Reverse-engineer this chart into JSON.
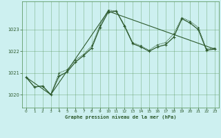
{
  "title": "Graphe pression niveau de la mer (hPa)",
  "background_color": "#cdf0f0",
  "grid_color": "#4a8a4a",
  "line_color": "#2d5a2d",
  "xlim": [
    -0.5,
    23.5
  ],
  "ylim": [
    1019.4,
    1024.3
  ],
  "yticks": [
    1020,
    1021,
    1022,
    1023
  ],
  "xticks": [
    0,
    1,
    2,
    3,
    4,
    5,
    6,
    7,
    8,
    9,
    10,
    11,
    12,
    13,
    14,
    15,
    16,
    17,
    18,
    19,
    20,
    21,
    22,
    23
  ],
  "line1_x": [
    0,
    1,
    2,
    3,
    4,
    5,
    6,
    7,
    8,
    9,
    10,
    11,
    12,
    13,
    14,
    15,
    16,
    17,
    18,
    19,
    20,
    21,
    22,
    23
  ],
  "line1_y": [
    1020.8,
    1020.35,
    1020.4,
    1020.0,
    1020.85,
    1021.05,
    1021.5,
    1021.8,
    1022.15,
    1023.1,
    1023.8,
    1023.85,
    1023.15,
    1022.35,
    1022.2,
    1022.0,
    1022.2,
    1022.3,
    1022.65,
    1023.5,
    1023.3,
    1023.0,
    1022.05,
    1022.1
  ],
  "line2_x": [
    0,
    1,
    2,
    3,
    4,
    5,
    6,
    7,
    8,
    9,
    10,
    11,
    12,
    13,
    14,
    15,
    16,
    17,
    18,
    19,
    20,
    21,
    22,
    23
  ],
  "line2_y": [
    1020.8,
    1020.35,
    1020.4,
    1020.0,
    1021.0,
    1021.15,
    1021.6,
    1021.85,
    1022.25,
    1023.2,
    1023.9,
    1023.85,
    1023.2,
    1022.4,
    1022.25,
    1022.05,
    1022.3,
    1022.4,
    1022.8,
    1023.55,
    1023.38,
    1023.1,
    1022.1,
    1022.15
  ],
  "line3_x": [
    0,
    3,
    10,
    23
  ],
  "line3_y": [
    1020.8,
    1020.0,
    1023.85,
    1022.1
  ]
}
